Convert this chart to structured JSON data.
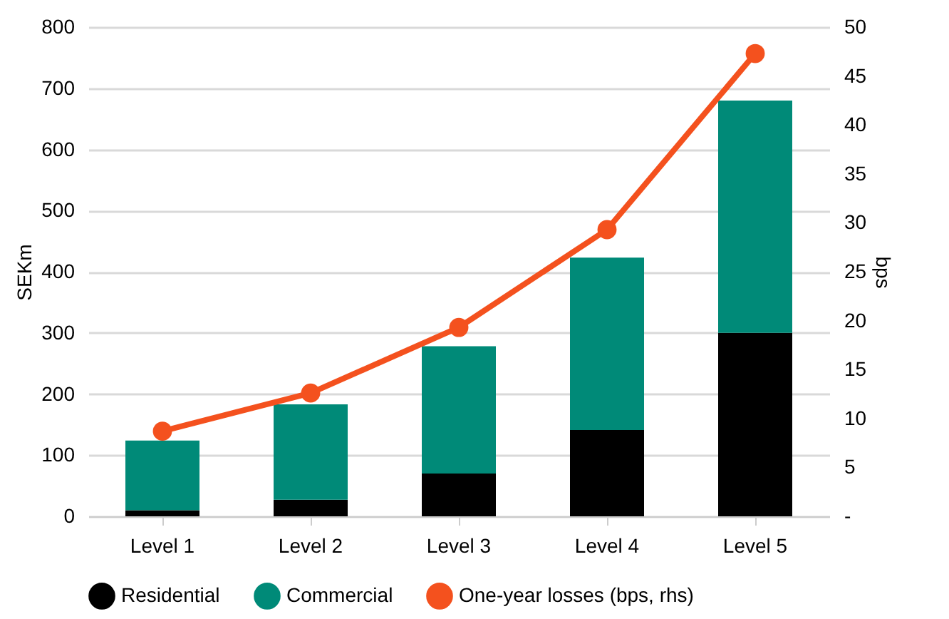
{
  "chart_data": {
    "type": "bar",
    "stacked": true,
    "ylabel": "SEKm",
    "y2label": "bps",
    "categories": [
      "Level 1",
      "Level 2",
      "Level 3",
      "Level 4",
      "Level 5"
    ],
    "series": [
      {
        "name": "Residential",
        "color": "#000000",
        "values": [
          10,
          27,
          70,
          141,
          300
        ]
      },
      {
        "name": "Commercial",
        "color": "#008a78",
        "values": [
          114,
          156,
          208,
          282,
          380
        ]
      },
      {
        "name": "One-year losses (bps, rhs)",
        "type": "line",
        "axis": "y2",
        "color": "#f4511e",
        "values": [
          8.7,
          12.6,
          19.3,
          29.3,
          47.3
        ]
      }
    ],
    "ylim": [
      0,
      800
    ],
    "yticks": [
      0,
      100,
      200,
      300,
      400,
      500,
      600,
      700,
      800
    ],
    "y2lim": [
      0,
      50
    ],
    "y2ticks": [
      {
        "value": 0,
        "label": "-"
      },
      5,
      10,
      15,
      20,
      25,
      30,
      35,
      40,
      45,
      50
    ],
    "grid": "y",
    "legend": "bottom",
    "marker": "circle"
  }
}
